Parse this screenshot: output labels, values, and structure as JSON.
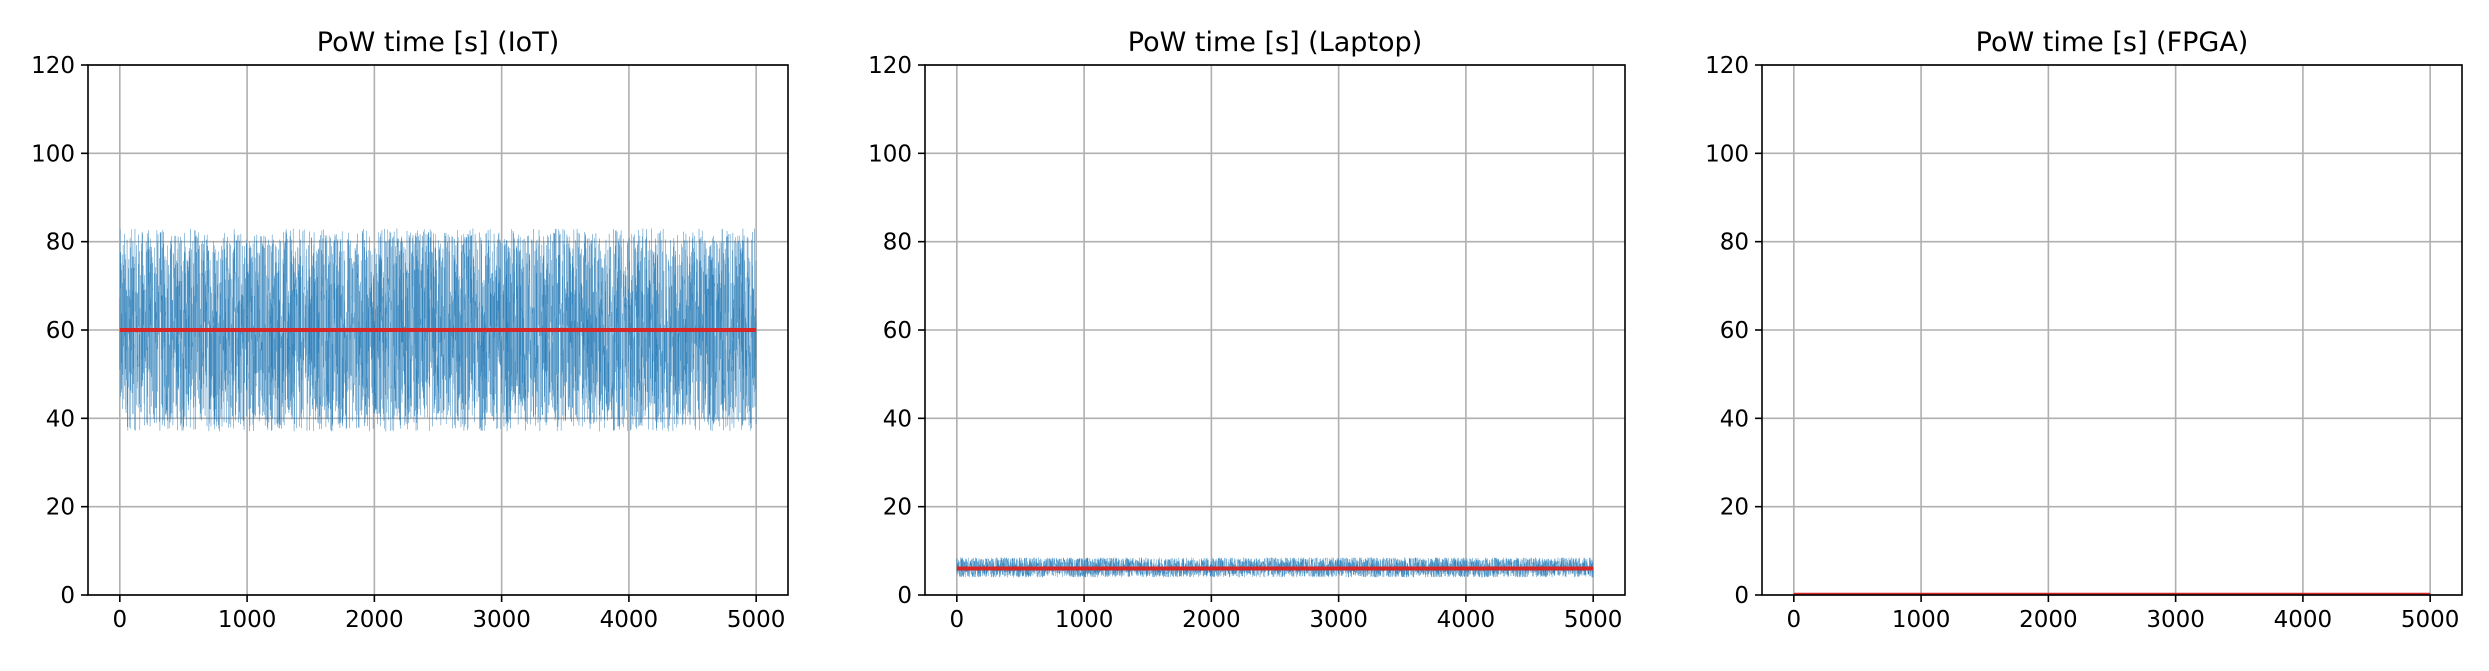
{
  "chart_data": [
    {
      "type": "line",
      "title": "PoW time [s] (IoT)",
      "xlabel": "",
      "ylabel": "",
      "xlim": [
        -250,
        5250
      ],
      "ylim": [
        0,
        120
      ],
      "x_ticks": [
        0,
        1000,
        2000,
        3000,
        4000,
        5000
      ],
      "y_ticks": [
        0,
        20,
        40,
        60,
        80,
        100,
        120
      ],
      "grid": true,
      "series": [
        {
          "kind": "noisy-line",
          "color": "#1f77b4",
          "x_range": [
            0,
            5000
          ],
          "n_points": 5000,
          "mean": 60,
          "y_min": 37,
          "y_max": 83
        },
        {
          "kind": "constant",
          "color": "#d62728",
          "x_range": [
            0,
            5000
          ],
          "value": 60
        }
      ]
    },
    {
      "type": "line",
      "title": "PoW time [s] (Laptop)",
      "xlabel": "",
      "ylabel": "",
      "xlim": [
        -250,
        5250
      ],
      "ylim": [
        0,
        120
      ],
      "x_ticks": [
        0,
        1000,
        2000,
        3000,
        4000,
        5000
      ],
      "y_ticks": [
        0,
        20,
        40,
        60,
        80,
        100,
        120
      ],
      "grid": true,
      "series": [
        {
          "kind": "noisy-line",
          "color": "#1f77b4",
          "x_range": [
            0,
            5000
          ],
          "n_points": 5000,
          "mean": 6,
          "y_min": 4,
          "y_max": 8.5
        },
        {
          "kind": "constant",
          "color": "#d62728",
          "x_range": [
            0,
            5000
          ],
          "value": 6
        }
      ]
    },
    {
      "type": "line",
      "title": "PoW time [s] (FPGA)",
      "xlabel": "",
      "ylabel": "",
      "xlim": [
        -250,
        5250
      ],
      "ylim": [
        0,
        120
      ],
      "x_ticks": [
        0,
        1000,
        2000,
        3000,
        4000,
        5000
      ],
      "y_ticks": [
        0,
        20,
        40,
        60,
        80,
        100,
        120
      ],
      "grid": true,
      "series": [
        {
          "kind": "noisy-line",
          "color": "#1f77b4",
          "x_range": [
            0,
            5000
          ],
          "n_points": 5000,
          "mean": 0.06,
          "y_min": 0.0,
          "y_max": 0.3
        },
        {
          "kind": "constant",
          "color": "#d62728",
          "x_range": [
            0,
            5000
          ],
          "value": 0.06
        }
      ]
    }
  ]
}
